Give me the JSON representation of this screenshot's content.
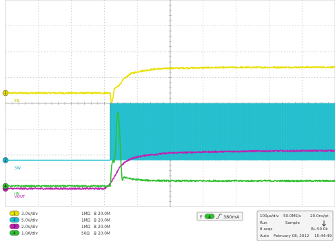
{
  "chart_data": {
    "type": "line",
    "title": "",
    "xlabel": "",
    "ylabel": "",
    "grid": true,
    "grid_divisions": {
      "x": 10,
      "y": 8
    },
    "x_unit": "µs",
    "xlim": [
      0,
      1000
    ],
    "series": [
      {
        "name": "EN",
        "color": "#e8e000",
        "label_color": "#c9c400",
        "marker": "1",
        "ylim": [
          -4.4,
          3.6
        ],
        "points": [
          [
            0,
            0
          ],
          [
            318,
            0
          ],
          [
            320,
            -0.3
          ],
          [
            323,
            -0.4
          ],
          [
            326,
            -0.2
          ],
          [
            330,
            0.15
          ],
          [
            345,
            0.3
          ],
          [
            360,
            0.55
          ],
          [
            380,
            0.75
          ],
          [
            410,
            0.85
          ],
          [
            450,
            0.92
          ],
          [
            500,
            0.96
          ],
          [
            600,
            0.98
          ],
          [
            700,
            0.99
          ],
          [
            1000,
            1.0
          ]
        ],
        "noise": 0.03
      },
      {
        "name": "SW",
        "color": "#1ec0d0",
        "label_color": "#1aa8b8",
        "marker": "2",
        "ylim": [
          -1.8,
          6.2
        ],
        "points": [
          [
            0,
            0
          ],
          [
            318,
            0
          ],
          [
            318,
            2.2
          ],
          [
            1000,
            2.2
          ]
        ],
        "noise": 0.04,
        "switching_start": 318
      },
      {
        "name": "VOUT",
        "color": "#c020b0",
        "label_color": "#b01ea8",
        "marker": "3",
        "ylim": [
          -0.7,
          7.3
        ],
        "points": [
          [
            0,
            0
          ],
          [
            300,
            0
          ],
          [
            315,
            0.15
          ],
          [
            330,
            0.45
          ],
          [
            345,
            0.8
          ],
          [
            365,
            1.05
          ],
          [
            390,
            1.2
          ],
          [
            430,
            1.3
          ],
          [
            500,
            1.38
          ],
          [
            600,
            1.42
          ],
          [
            750,
            1.45
          ],
          [
            1000,
            1.47
          ]
        ],
        "noise": 0.03
      },
      {
        "name": "IIN",
        "color": "#30c030",
        "label_color": "#28a828",
        "marker": "4",
        "ylim": [
          -0.8,
          7.2
        ],
        "points": [
          [
            0,
            0
          ],
          [
            318,
            0
          ],
          [
            322,
            0.8
          ],
          [
            326,
            1.0
          ],
          [
            330,
            0.9
          ],
          [
            334,
            1.4
          ],
          [
            338,
            2.6
          ],
          [
            342,
            2.9
          ],
          [
            346,
            2.2
          ],
          [
            350,
            1.0
          ],
          [
            354,
            0.2
          ],
          [
            360,
            0.35
          ],
          [
            380,
            0.28
          ],
          [
            420,
            0.22
          ],
          [
            500,
            0.2
          ],
          [
            1000,
            0.2
          ]
        ],
        "noise": 0.03
      }
    ]
  },
  "channel_settings": [
    {
      "marker": "1",
      "scale": "3.0V/div",
      "impedance": "1MΩ",
      "bw_symbol": "B",
      "bandwidth": "20.0M",
      "color": "#e8e000"
    },
    {
      "marker": "2",
      "scale": "5.0V/div",
      "impedance": "1MΩ",
      "bw_symbol": "B",
      "bandwidth": "20.0M",
      "color": "#1ec0d0"
    },
    {
      "marker": "3",
      "scale": "2.0V/div",
      "impedance": "1MΩ",
      "bw_symbol": "B",
      "bandwidth": "20.0M",
      "color": "#c020b0"
    },
    {
      "marker": "4",
      "scale": "1.0A/div",
      "impedance": "50Ω",
      "bw_symbol": "B",
      "bandwidth": "20.0M",
      "color": "#30c030"
    }
  ],
  "trigger": {
    "source_marker": "4",
    "level": "380mA",
    "prefix": "F"
  },
  "acquisition": {
    "timebase": "100µs/div",
    "sample_rate": "50.0MS/s",
    "point_spacing": "20.0ns/pt",
    "run_state": "Run",
    "mode": "Sample",
    "acqs": "8 acqs",
    "record_length": "RL:50.0k",
    "trigger_mode": "Auto",
    "date": "February 08, 2012",
    "time": "15:44:49"
  }
}
